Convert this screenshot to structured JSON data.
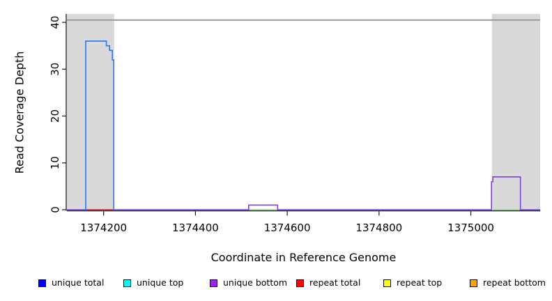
{
  "figure": {
    "x_title": "Coordinate in Reference Genome",
    "y_title": "Read Coverage Depth"
  },
  "chart_data": {
    "type": "line",
    "subtype": "step-coverage",
    "title": "",
    "xlabel": "Coordinate in Reference Genome",
    "ylabel": "Read Coverage Depth",
    "xlim": [
      1374120,
      1375151
    ],
    "ylim": [
      0,
      41.8
    ],
    "x_ticks": [
      1374200,
      1374400,
      1374600,
      1374800,
      1375000
    ],
    "y_ticks": [
      0,
      10,
      20,
      30,
      40
    ],
    "grid": false,
    "legend_position": "bottom",
    "shaded_regions": [
      {
        "name": "masked-region-left",
        "x0": 1374120,
        "x1": 1374223,
        "color": "#d9d9d9"
      },
      {
        "name": "masked-region-right",
        "x0": 1375046,
        "x1": 1375151,
        "color": "#d9d9d9"
      }
    ],
    "top_boundary_line": {
      "y": 40.5,
      "color": "#999999"
    },
    "series": [
      {
        "name": "repeat-overlap-baseline",
        "color": "#8fd88f",
        "segments": [
          [
            [
              1374516,
              0
            ],
            [
              1374579,
              0
            ]
          ],
          [
            [
              1375048,
              0
            ],
            [
              1375108,
              0
            ]
          ]
        ]
      },
      {
        "name": "unique-bottom",
        "color": "#7e49e6",
        "segments": [
          [
            [
              1374120,
              0
            ],
            [
              1374516,
              0
            ],
            [
              1374516,
              1
            ],
            [
              1374579,
              1
            ],
            [
              1374579,
              0
            ],
            [
              1375045,
              0
            ],
            [
              1375045,
              6
            ],
            [
              1375048,
              6
            ],
            [
              1375048,
              7
            ],
            [
              1375108,
              7
            ],
            [
              1375108,
              0
            ],
            [
              1375151,
              0
            ]
          ]
        ]
      },
      {
        "name": "repeat-total",
        "color": "#e23b3b",
        "segments": [
          [
            [
              1374161,
              0
            ],
            [
              1374223,
              0
            ]
          ]
        ]
      },
      {
        "name": "unique-total",
        "color": "#2f7df6",
        "segments": [
          [
            [
              1374161,
              0
            ],
            [
              1374161,
              36
            ],
            [
              1374206,
              36
            ],
            [
              1374206,
              35
            ],
            [
              1374213,
              35
            ],
            [
              1374213,
              34
            ],
            [
              1374219,
              34
            ],
            [
              1374219,
              32
            ],
            [
              1374222,
              32
            ],
            [
              1374222,
              0
            ]
          ]
        ]
      }
    ]
  },
  "legend": {
    "items": [
      {
        "label": "unique total",
        "color": "#0000ff"
      },
      {
        "label": "unique top",
        "color": "#00ffff"
      },
      {
        "label": "unique bottom",
        "color": "#a020f0"
      },
      {
        "label": "repeat total",
        "color": "#ff0000"
      },
      {
        "label": "repeat top",
        "color": "#ffff00"
      },
      {
        "label": "repeat bottom",
        "color": "#ffa500"
      }
    ]
  }
}
